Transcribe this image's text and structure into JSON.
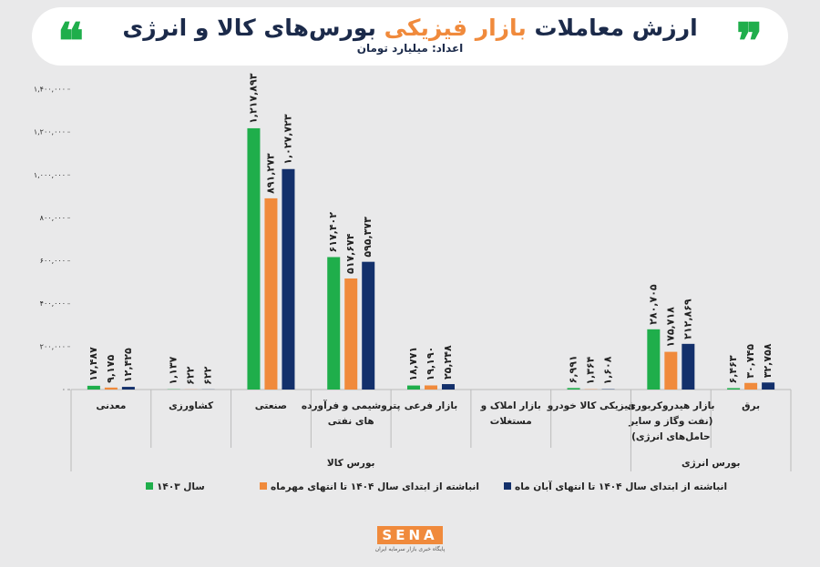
{
  "chart_data": {
    "type": "bar",
    "title": {
      "before": "ارزش معاملات",
      "highlight": "بازار فیزیکی",
      "after": "بورس‌های کالا و انرژی"
    },
    "subtitle": "اعداد: میلیارد تومان",
    "categories": [
      [
        "معدنی"
      ],
      [
        "کشاورزی"
      ],
      [
        "صنعتی"
      ],
      [
        "پتروشیمی و فرآورده",
        "های نفتی"
      ],
      [
        "بازار فرعی"
      ],
      [
        "بازار املاک و",
        "مستغلات"
      ],
      [
        "فیزیکی کالا خودرو"
      ],
      [
        "بازار هیدروکربوری",
        "(نفت وگاز و سایر",
        "حامل‌های انرژی)"
      ],
      [
        "برق"
      ]
    ],
    "groups": [
      {
        "label": "بورس کالا",
        "from": 0,
        "to": 6
      },
      {
        "label": "بورس انرژی",
        "from": 7,
        "to": 8
      }
    ],
    "series": [
      {
        "name": "سال ۱۴۰۳",
        "color": "#1fae4b",
        "values": [
          17487,
          1137,
          1217893,
          617402,
          18771,
          null,
          6991,
          280705,
          6463
        ],
        "value_labels": [
          "۱۷,۴۸۷",
          "۱,۱۳۷",
          "۱,۲۱۷,۸۹۳",
          "۶۱۷,۴۰۲",
          "۱۸,۷۷۱",
          null,
          "۶,۹۹۱",
          "۲۸۰,۷۰۵",
          "۶,۴۶۳"
        ]
      },
      {
        "name": "انباشته از ابتدای سال ۱۴۰۴ تا انتهای مهرماه",
        "color": "#f08a3c",
        "values": [
          9175,
          622,
          891273,
          517674,
          19190,
          null,
          1364,
          175718,
          30745
        ],
        "value_labels": [
          "۹,۱۷۵",
          "۶۲۲",
          "۸۹۱,۲۷۳",
          "۵۱۷,۶۷۴",
          "۱۹,۱۹۰",
          null,
          "۱,۳۶۴",
          "۱۷۵,۷۱۸",
          "۳۰,۷۴۵"
        ]
      },
      {
        "name": "انباشته از ابتدای سال ۱۴۰۴ تا انتهای آبان ماه",
        "color": "#13306b",
        "values": [
          12425,
          622,
          1027723,
          595373,
          25248,
          null,
          1608,
          212869,
          32758
        ],
        "value_labels": [
          "۱۲,۴۲۵",
          "۶۲۲",
          "۱,۰۲۷,۷۲۳",
          "۵۹۵,۳۷۳",
          "۲۵,۲۴۸",
          null,
          "۱,۶۰۸",
          "۲۱۲,۸۶۹",
          "۳۲,۷۵۸"
        ]
      }
    ],
    "ylim": [
      0,
      1400000
    ],
    "yticks": [
      {
        "value": 0,
        "label": "۰"
      },
      {
        "value": 200000,
        "label": "۲۰۰,۰۰۰"
      },
      {
        "value": 400000,
        "label": "۴۰۰,۰۰۰"
      },
      {
        "value": 600000,
        "label": "۶۰۰,۰۰۰"
      },
      {
        "value": 800000,
        "label": "۸۰۰,۰۰۰"
      },
      {
        "value": 1000000,
        "label": "۱,۰۰۰,۰۰۰"
      },
      {
        "value": 1200000,
        "label": "۱,۲۰۰,۰۰۰"
      },
      {
        "value": 1400000,
        "label": "۱,۴۰۰,۰۰۰"
      }
    ],
    "grid": false,
    "source": {
      "logo": "SENA",
      "text": "پایگاه خبری بازار سرمایه ایران"
    }
  }
}
